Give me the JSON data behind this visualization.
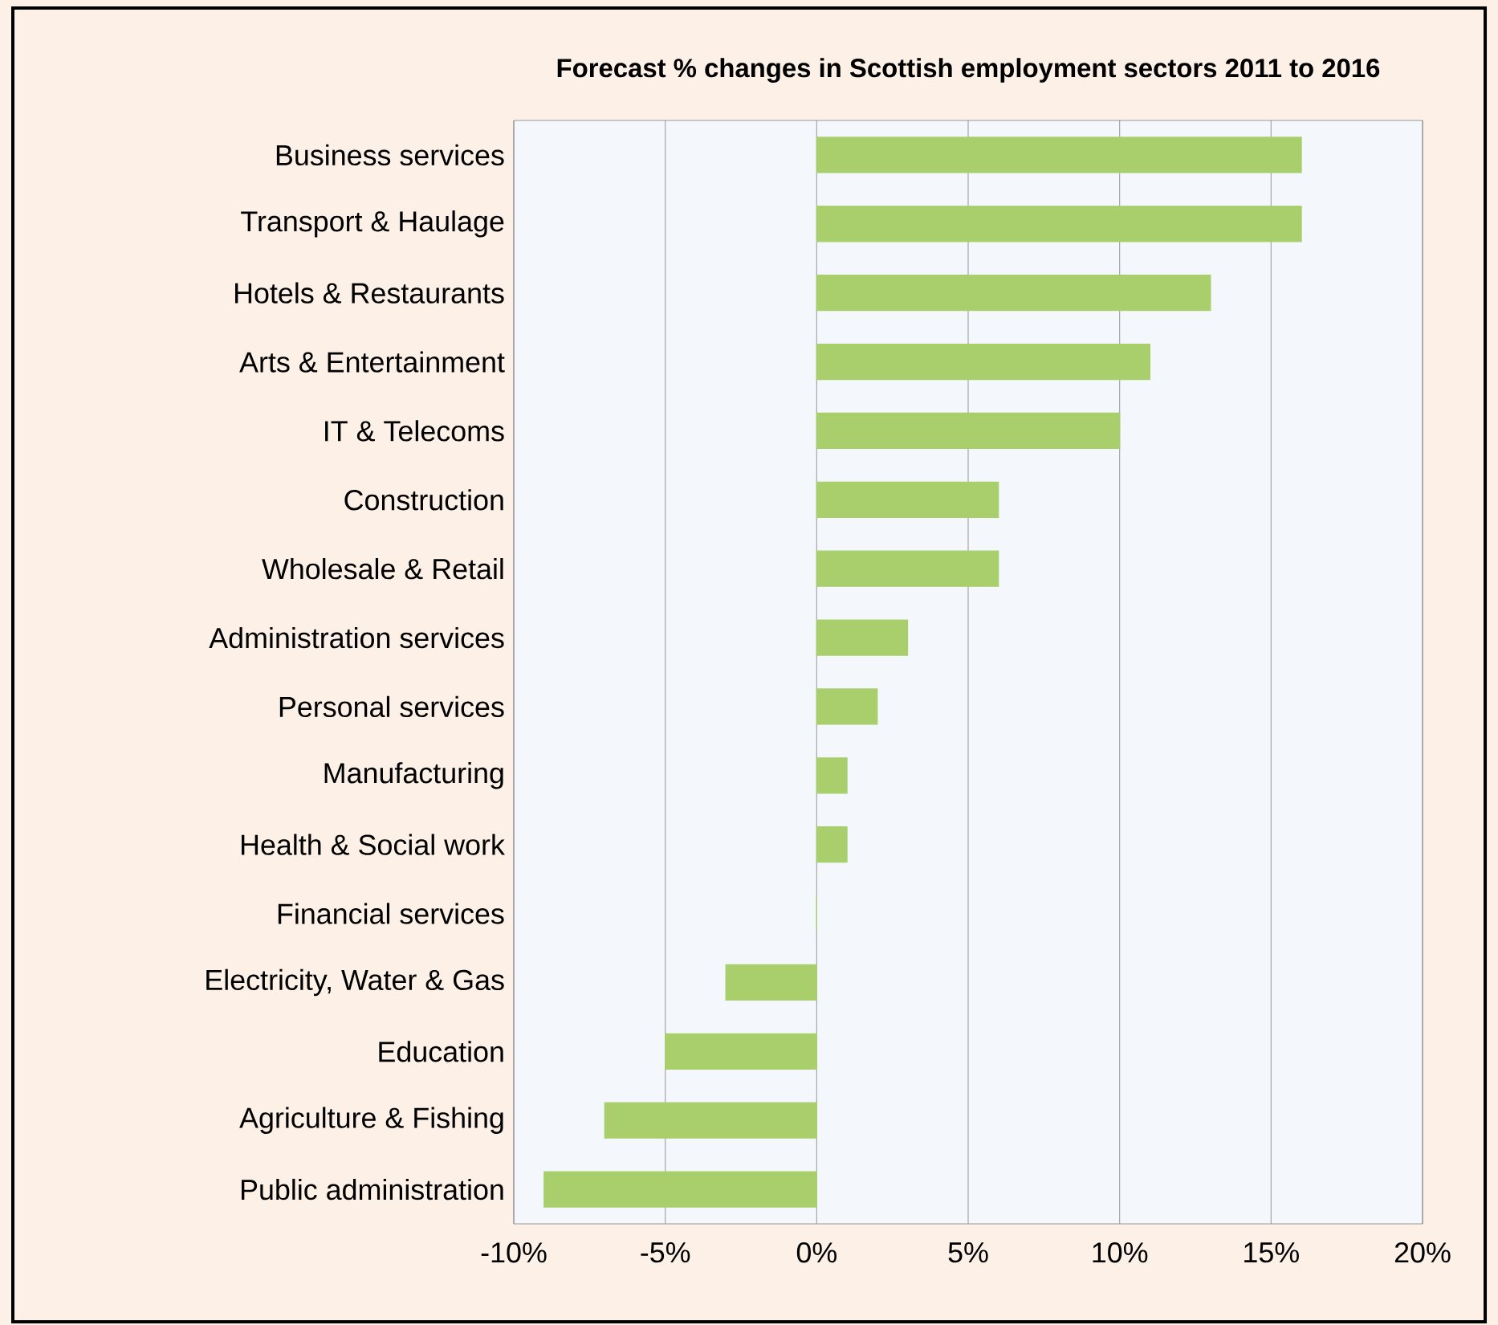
{
  "chart_data": {
    "type": "bar",
    "orientation": "horizontal",
    "title": "Forecast % changes in Scottish employment sectors 2011 to 2016",
    "categories": [
      "Business services",
      "Transport & Haulage",
      "Hotels & Restaurants",
      "Arts & Entertainment",
      "IT & Telecoms",
      "Construction",
      "Wholesale & Retail",
      "Administration services",
      "Personal services",
      "Manufacturing",
      "Health & Social work",
      "Financial services",
      "Electricity, Water & Gas",
      "Education",
      "Agriculture & Fishing",
      "Public administration"
    ],
    "values": [
      16,
      16,
      13,
      11,
      10,
      6,
      6,
      3,
      2,
      1,
      1,
      0,
      -3,
      -5,
      -7,
      -9
    ],
    "color": "#a8cf6c",
    "xlim": [
      -10,
      20
    ],
    "xticks": [
      {
        "value": -10,
        "label": "-10%"
      },
      {
        "value": -5,
        "label": "-5%"
      },
      {
        "value": 0,
        "label": "0%"
      },
      {
        "value": 5,
        "label": "5%"
      },
      {
        "value": 10,
        "label": "10%"
      },
      {
        "value": 15,
        "label": "15%"
      },
      {
        "value": 20,
        "label": "20%"
      }
    ],
    "grid": "x"
  }
}
